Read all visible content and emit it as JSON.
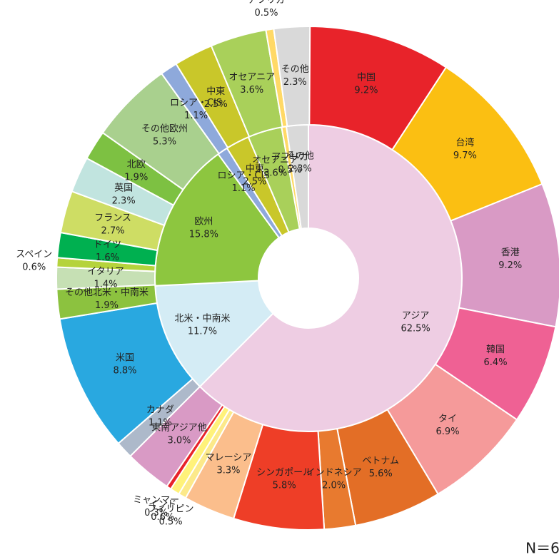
{
  "chart_data": {
    "type": "sunburst",
    "rings": [
      {
        "categories": [
          "アジア",
          "北米・中南米",
          "欧州",
          "ロシア・CIS",
          "中東",
          "オセアニア",
          "アフリカ",
          "その他"
        ],
        "values": [
          62.5,
          11.7,
          15.8,
          1.1,
          2.5,
          3.6,
          0.5,
          2.3
        ],
        "value_labels": [
          "62.5%",
          "11.7%",
          "15.8%",
          "1.1%",
          "2.5%",
          "3.6%",
          "0.5%",
          "2.3%"
        ],
        "colors": [
          "#eecde3",
          "#d4ecf5",
          "#8dc63f",
          "#8ea9db",
          "#c9c72a",
          "#a9d05a",
          "#ffd966",
          "#d9d9d9"
        ]
      },
      {
        "categories": [
          "中国",
          "台湾",
          "香港",
          "韓国",
          "タイ",
          "ベトナム",
          "インドネシア",
          "シンガポール",
          "マレーシア",
          "フィリピン",
          "インド",
          "ミャンマー",
          "東南アジア他",
          "カナダ",
          "米国",
          "その他北米・中南米",
          "イタリア",
          "スペイン",
          "ドイツ",
          "フランス",
          "英国",
          "北欧",
          "その他欧州",
          "ロシア・CIS",
          "中東",
          "オセアニア",
          "アフリカ",
          "その他"
        ],
        "values": [
          9.2,
          9.7,
          9.2,
          6.4,
          6.9,
          5.6,
          2.0,
          5.8,
          3.3,
          0.5,
          0.6,
          0.3,
          3.0,
          1.1,
          8.8,
          1.9,
          1.4,
          0.6,
          1.6,
          2.7,
          2.3,
          1.9,
          5.3,
          1.1,
          2.5,
          3.6,
          0.5,
          2.3
        ],
        "value_labels": [
          "9.2%",
          "9.7%",
          "9.2%",
          "6.4%",
          "6.9%",
          "5.6%",
          "2.0%",
          "5.8%",
          "3.3%",
          "0.5%",
          "0.6%",
          "0.3%",
          "3.0%",
          "1.1%",
          "8.8%",
          "1.9%",
          "1.4%",
          "0.6%",
          "1.6%",
          "2.7%",
          "2.3%",
          "1.9%",
          "5.3%",
          "1.1%",
          "2.5%",
          "3.6%",
          "0.5%",
          "2.3%"
        ],
        "colors": [
          "#e8232a",
          "#fbbf12",
          "#d99ac5",
          "#ef6194",
          "#f59a9a",
          "#e36e26",
          "#e87a2f",
          "#ee3e27",
          "#fbbe8c",
          "#fce98a",
          "#fff27a",
          "#e8232a",
          "#d99ac5",
          "#adb9ca",
          "#29a8e0",
          "#8cc23f",
          "#c6e0b4",
          "#b5d33c",
          "#00b050",
          "#cedd64",
          "#c1e4df",
          "#7dc142",
          "#a9d08e",
          "#8ea9db",
          "#c9c72a",
          "#a9d05a",
          "#ffd966",
          "#d9d9d9"
        ]
      }
    ],
    "note": "N＝6"
  }
}
